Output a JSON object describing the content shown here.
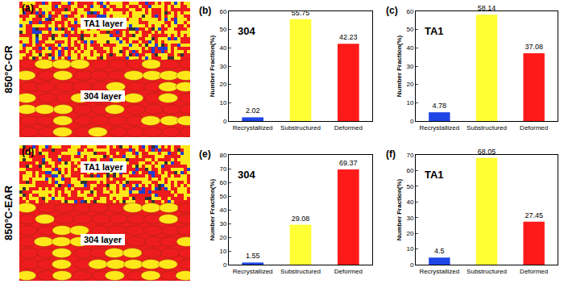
{
  "row_labels": [
    "850°C-CR",
    "850°C-EAR"
  ],
  "maps": [
    {
      "panel": "(a)",
      "labels": [
        "TA1 layer",
        "304 layer"
      ]
    },
    {
      "panel": "(d)",
      "labels": [
        "TA1 layer",
        "304 layer"
      ]
    }
  ],
  "chart_data": [
    {
      "panel": "(b)",
      "type": "bar",
      "title": "304",
      "categories": [
        "Recrystallized",
        "Substructured",
        "Deformed"
      ],
      "values": [
        2.02,
        55.75,
        42.23
      ],
      "colors": [
        "#1e46e6",
        "#ffff33",
        "#ff1a1a"
      ],
      "y_label": "Number Fraction(%)",
      "ylim": [
        0,
        60
      ],
      "yticks": [
        0,
        10,
        20,
        30,
        40,
        50,
        60
      ],
      "data_labels": true
    },
    {
      "panel": "(c)",
      "type": "bar",
      "title": "TA1",
      "categories": [
        "Recrystallized",
        "Substructured",
        "Deformed"
      ],
      "values": [
        4.78,
        58.14,
        37.08
      ],
      "colors": [
        "#1e46e6",
        "#ffff33",
        "#ff1a1a"
      ],
      "y_label": "Number Fraction(%)",
      "ylim": [
        0,
        60
      ],
      "yticks": [
        0,
        10,
        20,
        30,
        40,
        50,
        60
      ],
      "data_labels": true
    },
    {
      "panel": "(e)",
      "type": "bar",
      "title": "304",
      "categories": [
        "Recrystallized",
        "Substructured",
        "Deformed"
      ],
      "values": [
        1.55,
        29.08,
        69.37
      ],
      "colors": [
        "#1e46e6",
        "#ffff33",
        "#ff1a1a"
      ],
      "y_label": "Number Fraction(%)",
      "ylim": [
        0,
        80
      ],
      "yticks": [
        0,
        10,
        20,
        30,
        40,
        50,
        60,
        70,
        80
      ],
      "data_labels": true
    },
    {
      "panel": "(f)",
      "type": "bar",
      "title": "TA1",
      "categories": [
        "Recrystallized",
        "Substructured",
        "Deformed"
      ],
      "values": [
        4.5,
        68.05,
        27.45
      ],
      "colors": [
        "#1e46e6",
        "#ffff33",
        "#ff1a1a"
      ],
      "y_label": "Number Fraction(%)",
      "ylim": [
        0,
        70
      ],
      "yticks": [
        0,
        10,
        20,
        30,
        40,
        50,
        60,
        70
      ],
      "data_labels": true
    }
  ]
}
